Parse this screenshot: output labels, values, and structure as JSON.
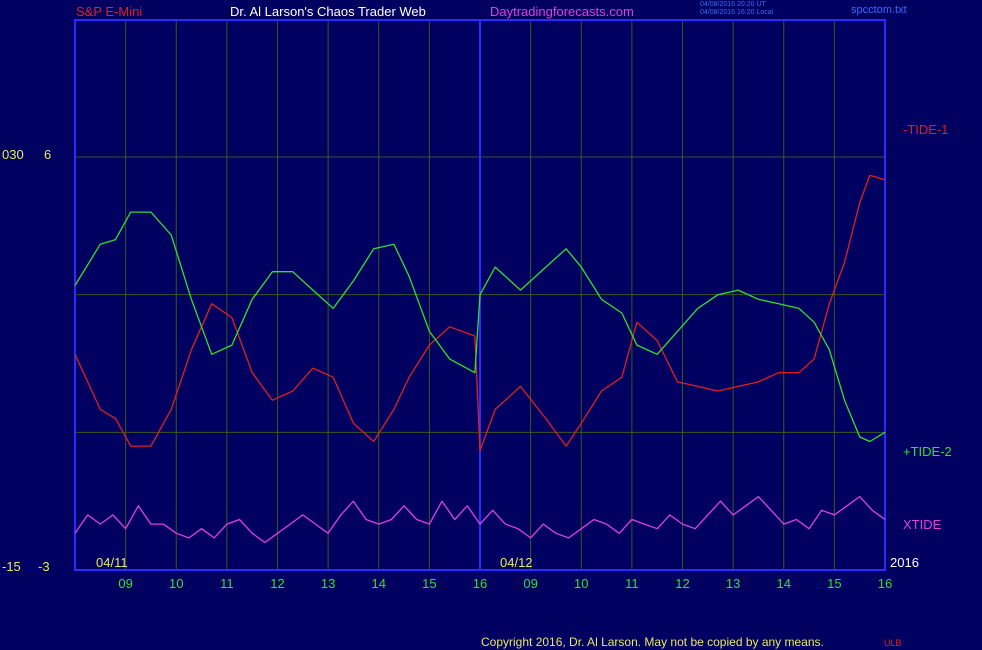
{
  "header": {
    "symbol": "S&P E-Mini",
    "title": "Dr. Al Larson's Chaos Trader Web",
    "site": "Daytradingforecasts.com",
    "stamp_utc": "04/08/2016 20:20 UT",
    "stamp_local": "04/08/2016 16:20 Local",
    "file": "spcctom.txt"
  },
  "footer": {
    "copyright": "Copyright 2016, Dr. Al Larson. May not be copied by any means.",
    "mark": "ULB"
  },
  "colors": {
    "background": "#000060",
    "frame": "#2b2bff",
    "grid": "#385a1e",
    "tide1": "#e02020",
    "tide2": "#30e030",
    "xtide": "#e040e0",
    "axis_text": "#e8e860",
    "title_text": "#ffffff",
    "site_text": "#e040e0",
    "symbol_text": "#e02020"
  },
  "chart_data": {
    "type": "line",
    "x_ticks": [
      "09",
      "10",
      "11",
      "12",
      "13",
      "14",
      "15",
      "16",
      "09",
      "10",
      "11",
      "12",
      "13",
      "14",
      "15",
      "16"
    ],
    "day_labels": [
      "04/11",
      "04/12"
    ],
    "year_label": "2016",
    "left_axis_labels": {
      "top_outer": "030",
      "top_inner": "6",
      "bottom_outer": "-15",
      "bottom_inner": "-3"
    },
    "ylim": [
      -3,
      6
    ],
    "x_range": [
      0,
      16
    ],
    "session_divider_x": 8,
    "grid": true,
    "legend": [
      "-TIDE-1",
      "+TIDE-2",
      "XTIDE"
    ],
    "series": [
      {
        "name": "-TIDE-1",
        "color": "#e02020",
        "points": [
          [
            0,
            1.7
          ],
          [
            0.5,
            0.5
          ],
          [
            0.8,
            0.3
          ],
          [
            1.1,
            -0.3
          ],
          [
            1.5,
            -0.3
          ],
          [
            1.9,
            0.5
          ],
          [
            2.3,
            1.8
          ],
          [
            2.7,
            2.8
          ],
          [
            3.1,
            2.5
          ],
          [
            3.5,
            1.3
          ],
          [
            3.9,
            0.7
          ],
          [
            4.3,
            0.9
          ],
          [
            4.7,
            1.4
          ],
          [
            5.1,
            1.2
          ],
          [
            5.5,
            0.2
          ],
          [
            5.9,
            -0.2
          ],
          [
            6.3,
            0.5
          ],
          [
            6.6,
            1.2
          ],
          [
            7.0,
            1.9
          ],
          [
            7.4,
            2.3
          ],
          [
            7.9,
            2.1
          ],
          [
            8.0,
            -0.4
          ],
          [
            8.3,
            0.5
          ],
          [
            8.8,
            1.0
          ],
          [
            9.3,
            0.3
          ],
          [
            9.7,
            -0.3
          ],
          [
            10.0,
            0.2
          ],
          [
            10.4,
            0.9
          ],
          [
            10.8,
            1.2
          ],
          [
            11.1,
            2.4
          ],
          [
            11.5,
            2.0
          ],
          [
            11.9,
            1.1
          ],
          [
            12.3,
            1.0
          ],
          [
            12.7,
            0.9
          ],
          [
            13.1,
            1.0
          ],
          [
            13.5,
            1.1
          ],
          [
            13.9,
            1.3
          ],
          [
            14.3,
            1.3
          ],
          [
            14.6,
            1.6
          ],
          [
            14.9,
            2.8
          ],
          [
            15.2,
            3.7
          ],
          [
            15.5,
            5.0
          ],
          [
            15.7,
            5.6
          ],
          [
            16.0,
            5.5
          ]
        ]
      },
      {
        "name": "+TIDE-2",
        "color": "#30e030",
        "points": [
          [
            0,
            3.2
          ],
          [
            0.5,
            4.1
          ],
          [
            0.8,
            4.2
          ],
          [
            1.1,
            4.8
          ],
          [
            1.5,
            4.8
          ],
          [
            1.9,
            4.3
          ],
          [
            2.3,
            2.9
          ],
          [
            2.7,
            1.7
          ],
          [
            3.1,
            1.9
          ],
          [
            3.5,
            2.9
          ],
          [
            3.9,
            3.5
          ],
          [
            4.3,
            3.5
          ],
          [
            4.7,
            3.1
          ],
          [
            5.1,
            2.7
          ],
          [
            5.5,
            3.3
          ],
          [
            5.9,
            4.0
          ],
          [
            6.3,
            4.1
          ],
          [
            6.6,
            3.4
          ],
          [
            7.0,
            2.2
          ],
          [
            7.4,
            1.6
          ],
          [
            7.9,
            1.3
          ],
          [
            8.0,
            3.0
          ],
          [
            8.3,
            3.6
          ],
          [
            8.8,
            3.1
          ],
          [
            9.3,
            3.6
          ],
          [
            9.7,
            4.0
          ],
          [
            10.0,
            3.6
          ],
          [
            10.4,
            2.9
          ],
          [
            10.8,
            2.6
          ],
          [
            11.1,
            1.9
          ],
          [
            11.5,
            1.7
          ],
          [
            11.9,
            2.2
          ],
          [
            12.3,
            2.7
          ],
          [
            12.7,
            3.0
          ],
          [
            13.1,
            3.1
          ],
          [
            13.5,
            2.9
          ],
          [
            13.9,
            2.8
          ],
          [
            14.3,
            2.7
          ],
          [
            14.6,
            2.4
          ],
          [
            14.9,
            1.8
          ],
          [
            15.2,
            0.7
          ],
          [
            15.5,
            -0.1
          ],
          [
            15.7,
            -0.2
          ],
          [
            16.0,
            0.0
          ]
        ]
      },
      {
        "name": "XTIDE",
        "color": "#e040e0",
        "points": [
          [
            0,
            -2.2
          ],
          [
            0.25,
            -1.8
          ],
          [
            0.5,
            -2.0
          ],
          [
            0.75,
            -1.8
          ],
          [
            1.0,
            -2.1
          ],
          [
            1.25,
            -1.6
          ],
          [
            1.5,
            -2.0
          ],
          [
            1.75,
            -2.0
          ],
          [
            2.0,
            -2.2
          ],
          [
            2.25,
            -2.3
          ],
          [
            2.5,
            -2.1
          ],
          [
            2.75,
            -2.3
          ],
          [
            3.0,
            -2.0
          ],
          [
            3.25,
            -1.9
          ],
          [
            3.5,
            -2.2
          ],
          [
            3.75,
            -2.4
          ],
          [
            4.0,
            -2.2
          ],
          [
            4.25,
            -2.0
          ],
          [
            4.5,
            -1.8
          ],
          [
            4.75,
            -2.0
          ],
          [
            5.0,
            -2.2
          ],
          [
            5.25,
            -1.8
          ],
          [
            5.5,
            -1.5
          ],
          [
            5.75,
            -1.9
          ],
          [
            6.0,
            -2.0
          ],
          [
            6.25,
            -1.9
          ],
          [
            6.5,
            -1.6
          ],
          [
            6.75,
            -1.9
          ],
          [
            7.0,
            -2.0
          ],
          [
            7.25,
            -1.5
          ],
          [
            7.5,
            -1.9
          ],
          [
            7.75,
            -1.6
          ],
          [
            8.0,
            -2.0
          ],
          [
            8.25,
            -1.7
          ],
          [
            8.5,
            -2.0
          ],
          [
            8.75,
            -2.1
          ],
          [
            9.0,
            -2.3
          ],
          [
            9.25,
            -2.0
          ],
          [
            9.5,
            -2.2
          ],
          [
            9.75,
            -2.3
          ],
          [
            10.0,
            -2.1
          ],
          [
            10.25,
            -1.9
          ],
          [
            10.5,
            -2.0
          ],
          [
            10.75,
            -2.2
          ],
          [
            11.0,
            -1.9
          ],
          [
            11.25,
            -2.0
          ],
          [
            11.5,
            -2.1
          ],
          [
            11.75,
            -1.8
          ],
          [
            12.0,
            -2.0
          ],
          [
            12.25,
            -2.1
          ],
          [
            12.5,
            -1.8
          ],
          [
            12.75,
            -1.5
          ],
          [
            13.0,
            -1.8
          ],
          [
            13.25,
            -1.6
          ],
          [
            13.5,
            -1.4
          ],
          [
            13.75,
            -1.7
          ],
          [
            14.0,
            -2.0
          ],
          [
            14.25,
            -1.9
          ],
          [
            14.5,
            -2.1
          ],
          [
            14.75,
            -1.7
          ],
          [
            15.0,
            -1.8
          ],
          [
            15.25,
            -1.6
          ],
          [
            15.5,
            -1.4
          ],
          [
            15.75,
            -1.7
          ],
          [
            16.0,
            -1.9
          ]
        ]
      }
    ]
  }
}
